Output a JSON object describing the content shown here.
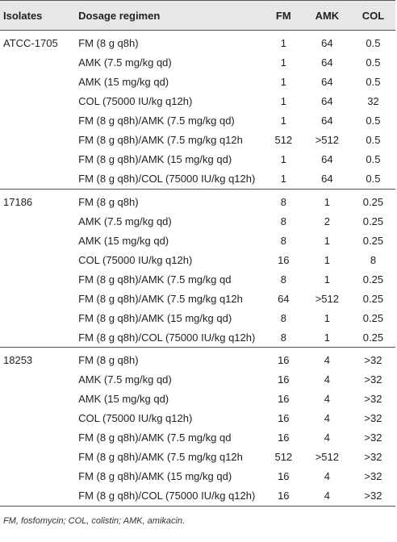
{
  "headers": {
    "isolates": "Isolates",
    "dosage": "Dosage regimen",
    "fm": "FM",
    "amk": "AMK",
    "col": "COL"
  },
  "groups": [
    {
      "isolate": "ATCC-1705",
      "rows": [
        {
          "dose": "FM (8 g q8h)",
          "fm": "1",
          "amk": "64",
          "col": "0.5"
        },
        {
          "dose": "AMK (7.5 mg/kg qd)",
          "fm": "1",
          "amk": "64",
          "col": "0.5"
        },
        {
          "dose": "AMK (15 mg/kg qd)",
          "fm": "1",
          "amk": "64",
          "col": "0.5"
        },
        {
          "dose": "COL (75000 IU/kg q12h)",
          "fm": "1",
          "amk": "64",
          "col": "32"
        },
        {
          "dose": "FM (8 g q8h)/AMK (7.5 mg/kg qd)",
          "fm": "1",
          "amk": "64",
          "col": "0.5"
        },
        {
          "dose": "FM (8 g q8h)/AMK (7.5 mg/kg q12h",
          "fm": "512",
          "amk": ">512",
          "col": "0.5"
        },
        {
          "dose": "FM (8 g q8h)/AMK (15 mg/kg qd)",
          "fm": "1",
          "amk": "64",
          "col": "0.5"
        },
        {
          "dose": "FM (8 g q8h)/COL (75000 IU/kg q12h)",
          "fm": "1",
          "amk": "64",
          "col": "0.5"
        }
      ]
    },
    {
      "isolate": "17186",
      "rows": [
        {
          "dose": "FM (8 g q8h)",
          "fm": "8",
          "amk": "1",
          "col": "0.25"
        },
        {
          "dose": "AMK (7.5 mg/kg qd)",
          "fm": "8",
          "amk": "2",
          "col": "0.25"
        },
        {
          "dose": "AMK (15 mg/kg qd)",
          "fm": "8",
          "amk": "1",
          "col": "0.25"
        },
        {
          "dose": "COL (75000 IU/kg q12h)",
          "fm": "16",
          "amk": "1",
          "col": "8"
        },
        {
          "dose": "FM (8 g q8h)/AMK (7.5 mg/kg qd",
          "fm": "8",
          "amk": "1",
          "col": "0.25"
        },
        {
          "dose": "FM (8 g q8h)/AMK (7.5 mg/kg q12h",
          "fm": "64",
          "amk": ">512",
          "col": "0.25"
        },
        {
          "dose": "FM (8 g q8h)/AMK (15 mg/kg qd)",
          "fm": "8",
          "amk": "1",
          "col": "0.25"
        },
        {
          "dose": "FM (8 g q8h)/COL (75000 IU/kg q12h)",
          "fm": "8",
          "amk": "1",
          "col": "0.25"
        }
      ]
    },
    {
      "isolate": "18253",
      "rows": [
        {
          "dose": "FM (8 g q8h)",
          "fm": "16",
          "amk": "4",
          "col": ">32"
        },
        {
          "dose": "AMK (7.5 mg/kg qd)",
          "fm": "16",
          "amk": "4",
          "col": ">32"
        },
        {
          "dose": "AMK (15 mg/kg qd)",
          "fm": "16",
          "amk": "4",
          "col": ">32"
        },
        {
          "dose": "COL (75000 IU/kg q12h)",
          "fm": "16",
          "amk": "4",
          "col": ">32"
        },
        {
          "dose": "FM (8 g q8h)/AMK (7.5 mg/kg qd",
          "fm": "16",
          "amk": "4",
          "col": ">32"
        },
        {
          "dose": "FM (8 g q8h)/AMK (7.5 mg/kg q12h",
          "fm": "512",
          "amk": ">512",
          "col": ">32"
        },
        {
          "dose": "FM (8 g q8h)/AMK (15 mg/kg qd)",
          "fm": "16",
          "amk": "4",
          "col": ">32"
        },
        {
          "dose": "FM (8 g q8h)/COL (75000 IU/kg q12h)",
          "fm": "16",
          "amk": "4",
          "col": ">32"
        }
      ]
    }
  ],
  "footnote": "FM, fosfomycin; COL, colistin; AMK, amikacin."
}
